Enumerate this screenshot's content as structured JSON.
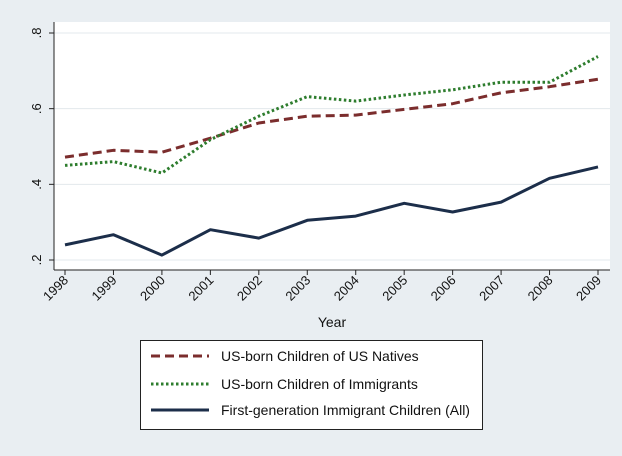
{
  "chart_data": {
    "type": "line",
    "title": "",
    "xlabel": "Year",
    "ylabel": "",
    "x": [
      "1998",
      "1999",
      "2000",
      "2001",
      "2002",
      "2003",
      "2004",
      "2005",
      "2006",
      "2007",
      "2008",
      "2009"
    ],
    "yticks": [
      0.2,
      0.4,
      0.6,
      0.8
    ],
    "ytick_labels": [
      ".2",
      ".4",
      ".6",
      ".8"
    ],
    "ylim": [
      0.2,
      0.8
    ],
    "grid": "horizontal",
    "legend_position": "bottom",
    "series": [
      {
        "name": "US-born Children of US Natives",
        "color": "#7b2d2d",
        "style": "dashed",
        "values": [
          0.472,
          0.49,
          0.485,
          0.522,
          0.562,
          0.58,
          0.583,
          0.598,
          0.613,
          0.642,
          0.658,
          0.678
        ]
      },
      {
        "name": "US-born Children of Immigrants",
        "color": "#2e7d2e",
        "style": "dotted",
        "values": [
          0.45,
          0.46,
          0.43,
          0.518,
          0.58,
          0.632,
          0.62,
          0.636,
          0.65,
          0.67,
          0.67,
          0.738
        ]
      },
      {
        "name": "First-generation Immigrant Children (All)",
        "color": "#1c2e4a",
        "style": "solid",
        "values": [
          0.24,
          0.267,
          0.213,
          0.28,
          0.258,
          0.305,
          0.316,
          0.35,
          0.327,
          0.353,
          0.416,
          0.446
        ]
      }
    ]
  }
}
